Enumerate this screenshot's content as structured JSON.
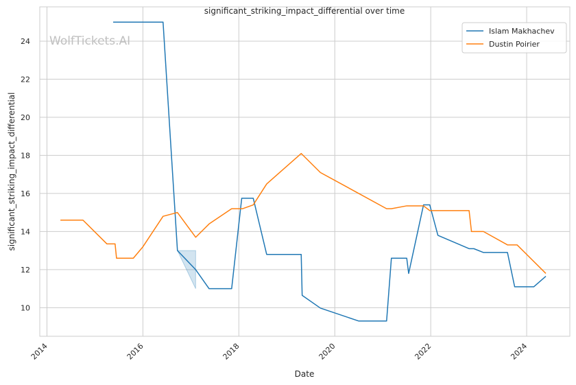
{
  "chart_data": {
    "type": "line",
    "title": "significant_striking_impact_differential over time",
    "xlabel": "Date",
    "ylabel": "significant_striking_impact_differential",
    "watermark": "WolfTickets.AI",
    "xlim": [
      2013.85,
      2024.9
    ],
    "ylim": [
      8.5,
      25.8
    ],
    "x_ticks": [
      2014,
      2016,
      2018,
      2020,
      2022,
      2024
    ],
    "x_tick_labels": [
      "2014",
      "2016",
      "2018",
      "2020",
      "2022",
      "2024"
    ],
    "y_ticks": [
      10,
      12,
      14,
      16,
      18,
      20,
      22,
      24
    ],
    "y_tick_labels": [
      "10",
      "12",
      "14",
      "16",
      "18",
      "20",
      "22",
      "24"
    ],
    "grid": true,
    "legend_position": "top-right",
    "series": [
      {
        "name": "Islam Makhachev",
        "color": "#1f77b4",
        "x": [
          2015.38,
          2016.42,
          2016.72,
          2017.1,
          2017.38,
          2017.85,
          2018.06,
          2018.3,
          2018.58,
          2019.3,
          2019.32,
          2019.7,
          2020.5,
          2021.08,
          2021.18,
          2021.5,
          2021.54,
          2021.85,
          2021.98,
          2022.15,
          2022.8,
          2022.9,
          2023.1,
          2023.6,
          2023.75,
          2024.15,
          2024.4
        ],
        "y": [
          25.0,
          25.0,
          13.0,
          12.0,
          11.0,
          11.0,
          15.75,
          15.75,
          12.8,
          12.8,
          10.65,
          9.98,
          9.3,
          9.3,
          12.6,
          12.6,
          11.8,
          15.4,
          15.4,
          13.8,
          13.1,
          13.1,
          12.9,
          12.9,
          11.1,
          11.1,
          11.65
        ],
        "band": {
          "x": [
            2016.72,
            2017.1
          ],
          "lower": [
            13.0,
            11.0
          ],
          "upper": [
            13.0,
            13.0
          ]
        }
      },
      {
        "name": "Dustin Poirier",
        "color": "#ff7f0e",
        "x": [
          2014.28,
          2014.75,
          2015.25,
          2015.42,
          2015.45,
          2015.8,
          2016.0,
          2016.42,
          2016.72,
          2017.1,
          2017.38,
          2017.85,
          2018.08,
          2018.3,
          2018.58,
          2019.3,
          2019.7,
          2020.5,
          2021.08,
          2021.18,
          2021.5,
          2021.85,
          2021.98,
          2022.15,
          2022.8,
          2022.85,
          2023.1,
          2023.6,
          2023.8,
          2024.4
        ],
        "y": [
          14.6,
          14.6,
          13.35,
          13.35,
          12.6,
          12.6,
          13.2,
          14.8,
          15.0,
          13.7,
          14.4,
          15.2,
          15.2,
          15.4,
          16.5,
          18.1,
          17.1,
          16.0,
          15.2,
          15.2,
          15.35,
          15.35,
          15.1,
          15.1,
          15.1,
          14.0,
          14.0,
          13.3,
          13.3,
          11.8
        ]
      }
    ]
  }
}
